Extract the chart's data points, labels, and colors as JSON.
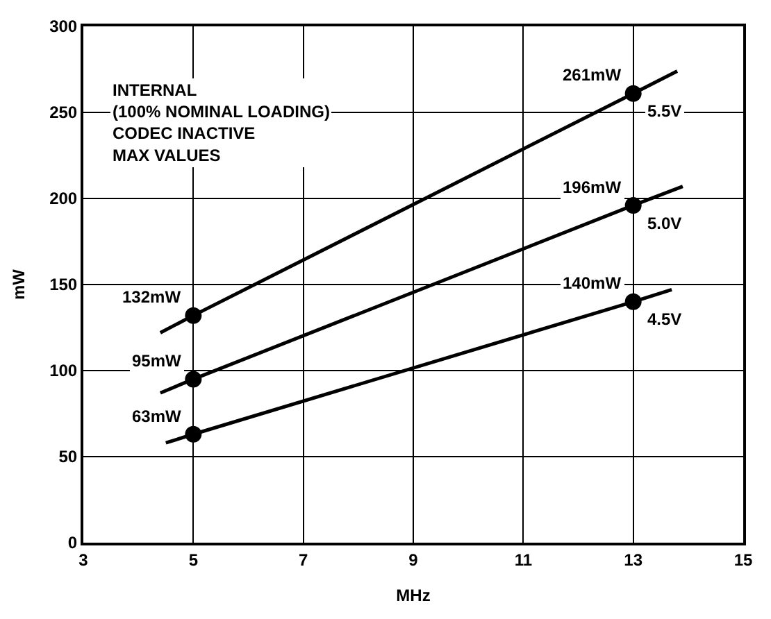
{
  "chart_data": {
    "type": "line",
    "xlabel": "MHz",
    "ylabel": "mW",
    "xlim": [
      3,
      15
    ],
    "xticks": [
      3,
      5,
      7,
      9,
      11,
      13,
      15
    ],
    "ylim": [
      0,
      300
    ],
    "yticks": [
      0,
      50,
      100,
      150,
      200,
      250,
      300
    ],
    "grid": true,
    "legend": false,
    "line_style": "solid",
    "marker": "none",
    "annotations": [
      "INTERNAL\n(100% NOMINAL LOADING)\nCODEC INACTIVE\nMAX VALUES"
    ],
    "series": [
      {
        "name": "5.5V",
        "color": "#000000",
        "x": [
          4.4,
          5,
          13,
          13.8
        ],
        "values": [
          122,
          132,
          261,
          274
        ]
      },
      {
        "name": "5.0V",
        "color": "#000000",
        "x": [
          4.4,
          5,
          13,
          13.9
        ],
        "values": [
          87,
          95,
          196,
          207
        ]
      },
      {
        "name": "4.5V",
        "color": "#000000",
        "x": [
          4.5,
          5,
          13,
          13.7
        ],
        "values": [
          58,
          63,
          140,
          147
        ]
      },
      {
        "type": "scatter",
        "marker": "circle",
        "color": "#000000",
        "x": [
          5,
          13,
          5,
          13,
          5,
          13
        ],
        "values": [
          132,
          261,
          95,
          196,
          63,
          140
        ],
        "value_labels": [
          "132mW",
          "261mW",
          "95mW",
          "196mW",
          "63mW",
          "140mW"
        ]
      }
    ]
  }
}
